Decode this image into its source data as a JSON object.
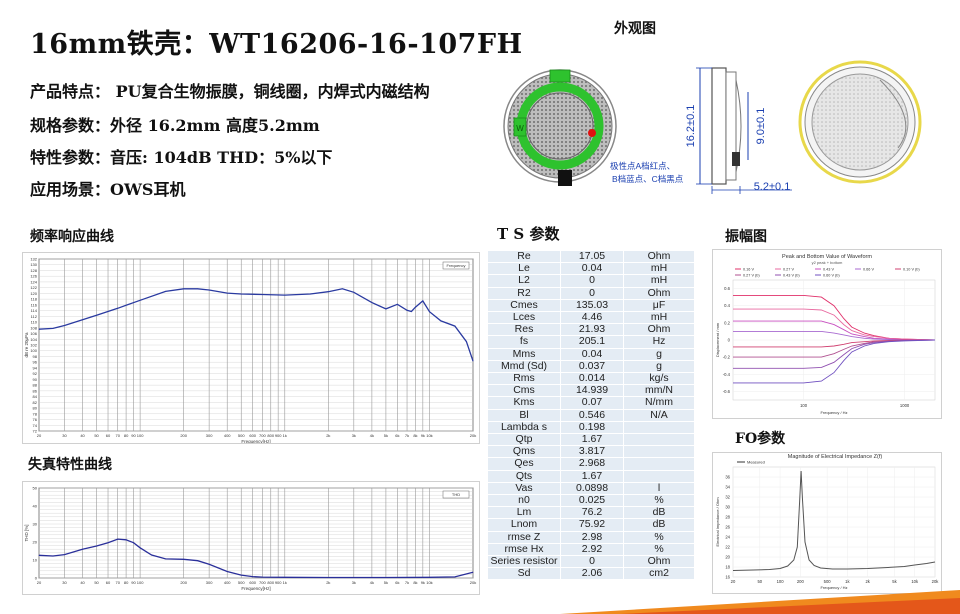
{
  "title": "16mm铁壳：WT16206-16-107FH",
  "specs": [
    {
      "label": "产品特点：",
      "value": " PU复合生物振膜，铜线圈，内焊式内磁结构"
    },
    {
      "label": "规格参数：",
      "value": "外径 16.2mm   高度5.2mm"
    },
    {
      "label": "特性参数：",
      "value": "音压: 104dB   THD：5%以下"
    },
    {
      "label": "应用场景：",
      "value": "OWS耳机"
    }
  ],
  "appearance": {
    "title": "外观图",
    "dim_height": "16.2±0.1",
    "dim_inner": "9.0±0.1",
    "dim_depth": "5.2±0.1",
    "terminal_mark": "W",
    "note_line1": "极性点A档红点、",
    "note_line2": "B档蓝点、C档黑点",
    "colors": {
      "pcb": "#2ec22e",
      "polarity_dot": "#e01010",
      "dim_blue": "#1a3fb0",
      "ring_yellow": "#e8d84a"
    }
  },
  "sections": {
    "fr": "频率响应曲线",
    "thd": "失真特性曲线",
    "ts": "T S 参数",
    "amp": "振幅图",
    "fo": "FO参数"
  },
  "ts_params": [
    [
      "Re",
      "17.05",
      "Ohm"
    ],
    [
      "Le",
      "0.04",
      "mH"
    ],
    [
      "L2",
      "0",
      "mH"
    ],
    [
      "R2",
      "0",
      "Ohm"
    ],
    [
      "Cmes",
      "135.03",
      "μF"
    ],
    [
      "Lces",
      "4.46",
      "mH"
    ],
    [
      "Res",
      "21.93",
      "Ohm"
    ],
    [
      "fs",
      "205.1",
      "Hz"
    ],
    [
      "Mms",
      "0.04",
      "g"
    ],
    [
      "Mmd (Sd)",
      "0.037",
      "g"
    ],
    [
      "Rms",
      "0.014",
      "kg/s"
    ],
    [
      "Cms",
      "14.939",
      "mm/N"
    ],
    [
      "Kms",
      "0.07",
      "N/mm"
    ],
    [
      "Bl",
      "0.546",
      "N/A"
    ],
    [
      "Lambda s",
      "0.198",
      ""
    ],
    [
      "Qtp",
      "1.67",
      ""
    ],
    [
      "Qms",
      "3.817",
      ""
    ],
    [
      "Qes",
      "2.968",
      ""
    ],
    [
      "Qts",
      "1.67",
      ""
    ],
    [
      "Vas",
      "0.0898",
      "l"
    ],
    [
      "n0",
      "0.025",
      "%"
    ],
    [
      "Lm",
      "76.2",
      "dB"
    ],
    [
      "Lnom",
      "75.92",
      "dB"
    ],
    [
      "rmse Z",
      "2.98",
      "%"
    ],
    [
      "rmse Hx",
      "2.92",
      "%"
    ],
    [
      "Series resistor",
      "0",
      "Ohm"
    ],
    [
      "Sd",
      "2.06",
      "cm2"
    ]
  ],
  "chart_data": [
    {
      "type": "line",
      "name": "frequency-response",
      "xscale": "log",
      "xlim": [
        20,
        20000
      ],
      "ylim": [
        72,
        132
      ],
      "xlabel": "Frequency[Hz]",
      "ylabel": "dB re 20μPa",
      "legend": "Frequency",
      "grid": true,
      "x": [
        20,
        25,
        30,
        40,
        50,
        70,
        100,
        150,
        200,
        250,
        300,
        400,
        500,
        700,
        1000,
        1500,
        2000,
        2500,
        3000,
        4000,
        5000,
        6000,
        7000,
        7500,
        8000,
        9000,
        10000,
        12000,
        15000,
        18000,
        20000
      ],
      "series": [
        {
          "values": [
            107.5,
            107.8,
            108.8,
            110.8,
            112.4,
            114.8,
            117.6,
            120.7,
            121.6,
            121.6,
            121.2,
            120.1,
            119.8,
            119.6,
            119.4,
            119.8,
            120.6,
            121.6,
            120.4,
            116.8,
            114.6,
            116.2,
            114.1,
            113.7,
            115.2,
            117.4,
            113.6,
            110.4,
            108.6,
            103.2,
            96.4
          ]
        }
      ]
    },
    {
      "type": "line",
      "name": "thd",
      "xscale": "log",
      "xlim": [
        20,
        20000
      ],
      "ylim": [
        0,
        50
      ],
      "xlabel": "Frequency[Hz]",
      "ylabel": "THD [%]",
      "legend": "THD",
      "grid": true,
      "x": [
        20,
        25,
        30,
        40,
        50,
        60,
        70,
        80,
        90,
        100,
        120,
        150,
        200,
        250,
        300,
        400,
        500,
        600,
        700,
        1000,
        2000,
        5000,
        10000,
        15000,
        20000
      ],
      "series": [
        {
          "values": [
            12.6,
            12.2,
            13.0,
            16.0,
            17.8,
            19.6,
            21.6,
            21.2,
            19.6,
            16.8,
            12.8,
            10.6,
            10.4,
            9.6,
            7.6,
            3.6,
            1.6,
            0.8,
            0.5,
            0.4,
            0.3,
            0.3,
            0.4,
            0.6,
            3.2
          ]
        }
      ]
    },
    {
      "type": "line",
      "name": "amplitude",
      "title": "Peak and Bottom Value of Waveform",
      "subtitle": "y2 peak + bottom",
      "xscale": "log",
      "xlim": [
        20,
        2000
      ],
      "ylim": [
        -0.7,
        0.7
      ],
      "xlabel": "Frequency / Hz",
      "ylabel": "Displacement / mm",
      "xticks": [
        "100",
        "1000"
      ],
      "yticks": [
        "0.6",
        "0.4",
        "0.2",
        "0",
        "-0.2",
        "-0.4",
        "-0.6"
      ],
      "legend_items": [
        "0.16 V",
        "0.27 V",
        "0.43 V",
        "0.66 V",
        "0.10 V (b)",
        "0.27 V (b)",
        "0.43 V (b)",
        "0.60 V (b)"
      ],
      "x": [
        20,
        50,
        100,
        150,
        200,
        250,
        300,
        400,
        500,
        700,
        1000,
        2000
      ],
      "series": [
        {
          "values": [
            0.52,
            0.52,
            0.52,
            0.5,
            0.4,
            0.25,
            0.15,
            0.08,
            0.05,
            0.02,
            0.01,
            0
          ]
        },
        {
          "values": [
            0.36,
            0.36,
            0.36,
            0.35,
            0.29,
            0.18,
            0.11,
            0.06,
            0.04,
            0.02,
            0.01,
            0
          ]
        },
        {
          "values": [
            0.22,
            0.22,
            0.22,
            0.22,
            0.18,
            0.12,
            0.07,
            0.04,
            0.02,
            0.01,
            0.005,
            0
          ]
        },
        {
          "values": [
            0.1,
            0.1,
            0.1,
            0.1,
            0.08,
            0.06,
            0.04,
            0.02,
            0.01,
            0.005,
            0,
            0
          ]
        },
        {
          "values": [
            -0.08,
            -0.08,
            -0.08,
            -0.08,
            -0.07,
            -0.05,
            -0.03,
            -0.02,
            -0.01,
            -0.005,
            0,
            0
          ]
        },
        {
          "values": [
            -0.2,
            -0.2,
            -0.2,
            -0.2,
            -0.16,
            -0.11,
            -0.07,
            -0.04,
            -0.02,
            -0.01,
            -0.005,
            0
          ]
        },
        {
          "values": [
            -0.33,
            -0.33,
            -0.33,
            -0.32,
            -0.26,
            -0.17,
            -0.1,
            -0.05,
            -0.03,
            -0.015,
            -0.005,
            0
          ]
        },
        {
          "values": [
            -0.5,
            -0.5,
            -0.5,
            -0.48,
            -0.38,
            -0.24,
            -0.14,
            -0.07,
            -0.04,
            -0.02,
            -0.01,
            0
          ]
        }
      ],
      "colors": [
        "#e0306a",
        "#e86aa0",
        "#c84fc0",
        "#a86ad0",
        "#d04070",
        "#b05090",
        "#9050b0",
        "#7050c0"
      ]
    },
    {
      "type": "line",
      "name": "impedance",
      "title": "Magnitude of Electrical Impedance Z(f)",
      "legend": "Measured",
      "xscale": "log",
      "xlim": [
        20,
        20000
      ],
      "ylim": [
        16,
        38
      ],
      "xlabel": "Frequency / Hz",
      "ylabel": "Electrical Impedance / Ohm",
      "xticks": [
        "20",
        "50",
        "100",
        "200",
        "500",
        "1k",
        "2k",
        "5k",
        "10k",
        "20k"
      ],
      "yticks": [
        "36",
        "34",
        "32",
        "30",
        "28",
        "26",
        "24",
        "22",
        "20",
        "18",
        "16"
      ],
      "x": [
        20,
        40,
        70,
        100,
        130,
        160,
        180,
        195,
        205,
        215,
        235,
        270,
        320,
        400,
        600,
        1000,
        2000,
        4000,
        7000,
        10000,
        15000,
        20000
      ],
      "series": [
        {
          "values": [
            17.3,
            17.4,
            17.5,
            17.7,
            18.2,
            19.4,
            22.0,
            31.0,
            37.2,
            31.8,
            23.0,
            19.4,
            18.3,
            17.8,
            17.6,
            17.6,
            17.7,
            17.9,
            18.1,
            18.4,
            18.7,
            19.0
          ]
        }
      ]
    }
  ]
}
